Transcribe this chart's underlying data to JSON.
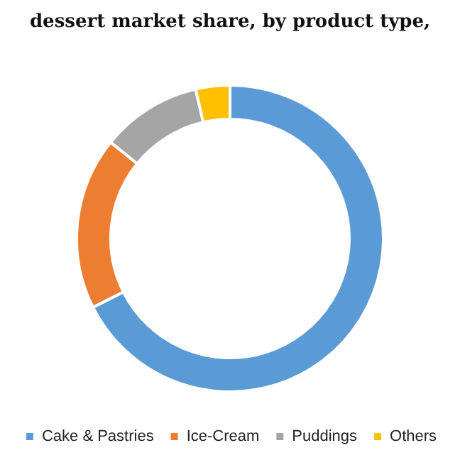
{
  "chart_data": {
    "type": "donut",
    "title": "dessert market share, by product type,",
    "categories": [
      "Cake & Pastries",
      "Ice-Cream",
      "Puddings",
      "Others"
    ],
    "values": [
      67.6,
      18.2,
      10.6,
      3.6
    ],
    "colors": [
      "#5b9bd5",
      "#ed7d31",
      "#a5a5a5",
      "#ffc000"
    ],
    "legend": "bottom"
  }
}
